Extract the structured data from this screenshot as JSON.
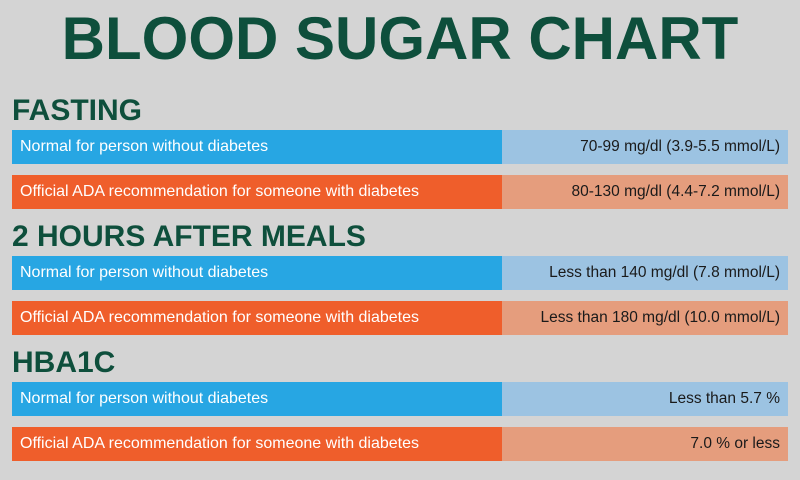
{
  "title": "BLOOD SUGAR CHART",
  "colors": {
    "heading": "#0e4f3c",
    "normal_label_bg": "#27a6e3",
    "normal_value_bg": "#9cc3e2",
    "ada_label_bg": "#ef5e2b",
    "ada_value_bg": "#e59d7d",
    "background": "#d4d4d4"
  },
  "sections": [
    {
      "heading": "FASTING",
      "rows": [
        {
          "label": "Normal for person without diabetes",
          "value": "70-99 mg/dl (3.9-5.5 mmol/L)"
        },
        {
          "label": "Official ADA recommendation for someone with diabetes",
          "value": "80-130 mg/dl (4.4-7.2 mmol/L)"
        }
      ]
    },
    {
      "heading": "2 HOURS AFTER MEALS",
      "rows": [
        {
          "label": "Normal for person without diabetes",
          "value": "Less than 140 mg/dl (7.8 mmol/L)"
        },
        {
          "label": "Official ADA recommendation for someone with diabetes",
          "value": "Less than 180 mg/dl (10.0 mmol/L)"
        }
      ]
    },
    {
      "heading": "HBA1C",
      "rows": [
        {
          "label": "Normal for person without diabetes",
          "value": "Less than 5.7 %"
        },
        {
          "label": "Official ADA recommendation for someone with diabetes",
          "value": "7.0 % or less"
        }
      ]
    }
  ]
}
